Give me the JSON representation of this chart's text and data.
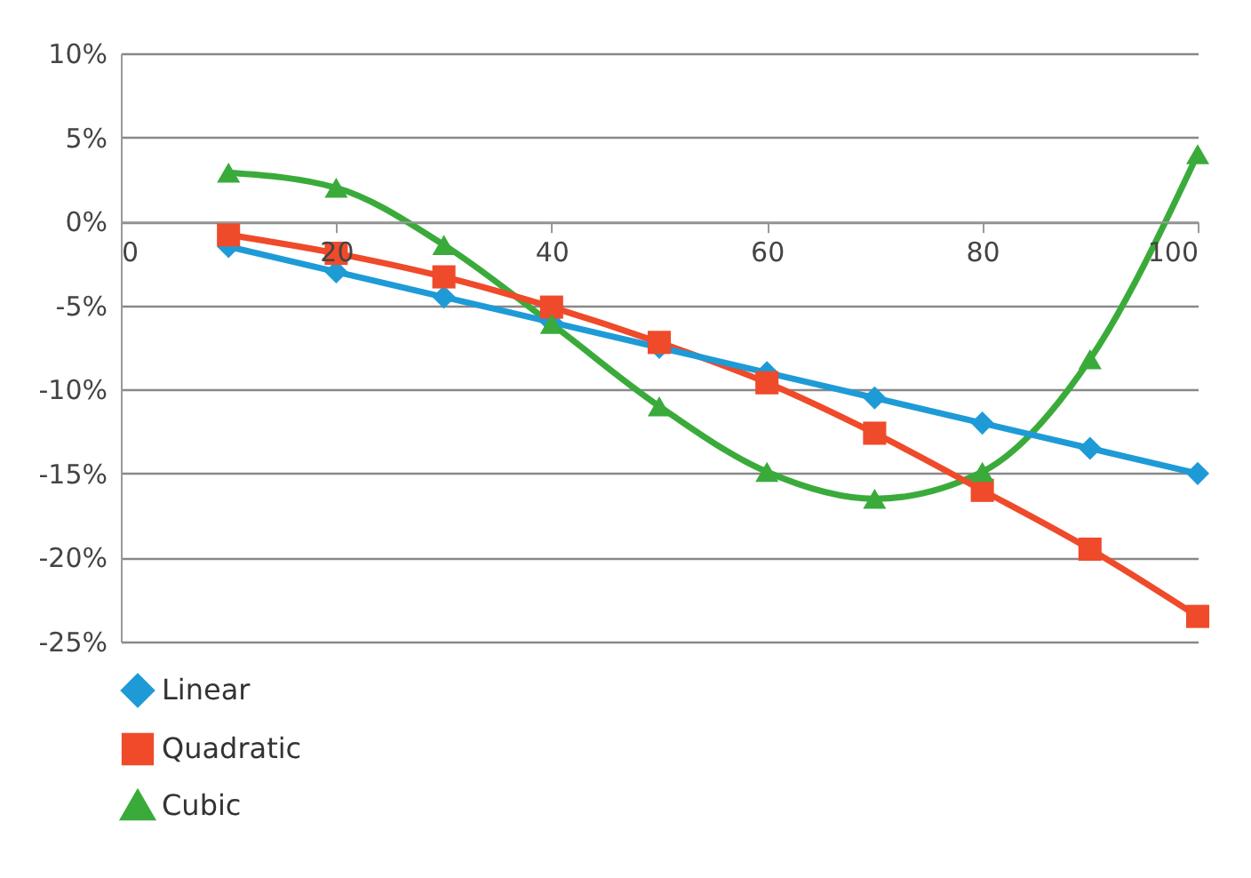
{
  "chart_data": {
    "type": "line",
    "x": [
      10,
      20,
      30,
      40,
      50,
      60,
      70,
      80,
      90,
      100
    ],
    "series": [
      {
        "name": "Linear",
        "color": "#1e9bd7",
        "marker": "diamond",
        "values": [
          -1.5,
          -3,
          -4.5,
          -6,
          -7.5,
          -9,
          -10.5,
          -12,
          -13.5,
          -15
        ]
      },
      {
        "name": "Quadratic",
        "color": "#ef4a2a",
        "marker": "square",
        "values": [
          -0.8,
          -1.9,
          -3.3,
          -5.1,
          -7.2,
          -9.6,
          -12.6,
          -16,
          -19.5,
          -23.5
        ]
      },
      {
        "name": "Cubic",
        "color": "#3aab3a",
        "marker": "triangle",
        "values": [
          2.9,
          2,
          -1.4,
          -6.1,
          -11,
          -14.9,
          -16.5,
          -14.9,
          -8.2,
          4
        ]
      }
    ],
    "xlim": [
      0,
      100
    ],
    "xticks": [
      0,
      20,
      40,
      60,
      80,
      100
    ],
    "ylim": [
      -25,
      10
    ],
    "yticks": [
      {
        "value": 10,
        "label": "10%"
      },
      {
        "value": 5,
        "label": "5%"
      },
      {
        "value": 0,
        "label": "0%"
      },
      {
        "value": -5,
        "label": "-5%"
      },
      {
        "value": -10,
        "label": "-10%"
      },
      {
        "value": -15,
        "label": "-15%"
      },
      {
        "value": -20,
        "label": "-20%"
      },
      {
        "value": -25,
        "label": "-25%"
      }
    ],
    "grid": "y",
    "legend": "bottom left",
    "line_style": "solid"
  }
}
